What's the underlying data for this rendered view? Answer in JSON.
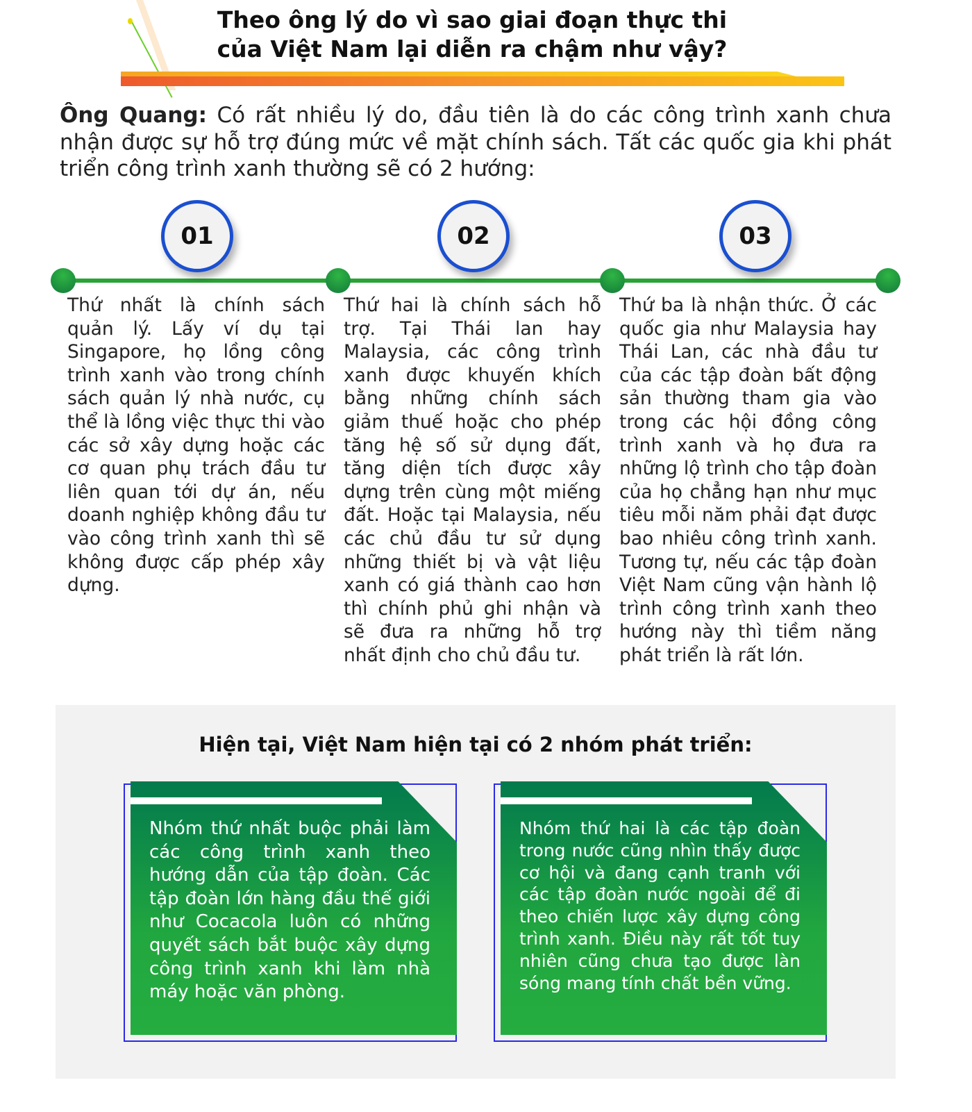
{
  "header": {
    "title_line1": "Theo ông lý do vì sao giai đoạn thực thi",
    "title_line2": "của Việt Nam lại diễn ra chậm như vậy?"
  },
  "intro": {
    "speaker": "Ông Quang:",
    "text": " Có rất nhiều lý do, đầu tiên là do các công trình xanh chưa nhận được sự hỗ trợ đúng mức về mặt chính sách. Tất các quốc gia khi phát triển công trình xanh thường sẽ có 2 hướng:"
  },
  "steps": [
    {
      "number": "01",
      "text": "Thứ nhất là chính sách quản lý. Lấy ví dụ tại Singapore, họ lồng công trình xanh vào trong chính sách quản lý nhà nước, cụ thể là lồng việc thực thi vào các sở xây dựng hoặc các cơ quan phụ trách đầu tư liên quan tới dự án, nếu doanh nghiệp không đầu tư vào công trình xanh thì sẽ không được cấp phép xây dựng."
    },
    {
      "number": "02",
      "text": "Thứ hai là chính sách hỗ trợ. Tại Thái lan hay Malaysia, các công trình xanh được khuyến khích bằng những chính sách giảm thuế hoặc cho phép tăng hệ số sử dụng đất, tăng diện tích được xây dựng trên cùng một miếng đất. Hoặc tại Malaysia, nếu các chủ đầu tư sử dụng những thiết bị và vật liệu xanh có giá thành cao hơn thì chính phủ ghi nhận và sẽ đưa ra những hỗ trợ nhất định cho chủ đầu tư."
    },
    {
      "number": "03",
      "text": "Thứ ba là nhận thức. Ở các quốc gia như Malaysia hay Thái Lan, các nhà đầu tư của các tập đoàn bất động sản thường tham gia vào trong các hội đồng công trình xanh và họ đưa ra những lộ trình cho tập đoàn của họ chẳng hạn như mục tiêu mỗi năm phải đạt được bao nhiêu công trình xanh. Tương tự, nếu các tập đoàn Việt Nam cũng vận hành lộ trình công trình xanh theo hướng này thì tiềm năng phát triển là rất lớn."
    }
  ],
  "groups": {
    "heading": "Hiện tại, Việt Nam hiện tại có 2 nhóm phát triển:",
    "items": [
      {
        "text": "Nhóm thứ nhất buộc phải làm các công trình xanh theo hướng dẫn của tập đoàn. Các tập đoàn lớn hàng đầu thế giới như Cocacola luôn có những quyết sách bắt buộc xây dựng công trình xanh khi làm nhà máy hoặc văn phòng."
      },
      {
        "text": "Nhóm thứ hai là các tập đoàn trong nước cũng nhìn thấy được cơ hội và đang cạnh tranh với các tập đoàn nước ngoài để đi theo chiến lược xây dựng công trình xanh. Điều này rất tốt tuy nhiên cũng chưa tạo được làn sóng mang tính chất bền vững."
      }
    ]
  },
  "colors": {
    "green": "#25ad40",
    "dark_green": "#037a4d",
    "blue": "#1a4fd0",
    "orange": "#ee5a2c",
    "yellow": "#fbc414",
    "gray_bg": "#f2f2f2"
  }
}
